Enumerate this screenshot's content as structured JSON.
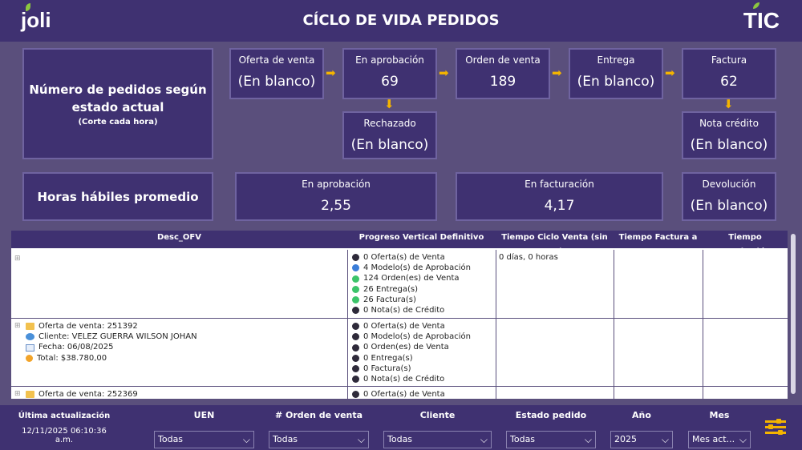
{
  "header": {
    "title": "CÍCLO DE VIDA PEDIDOS",
    "logo_left": "joli",
    "logo_right": "TIC"
  },
  "summary": {
    "title_line1": "Número de pedidos según",
    "title_line2": "estado actual",
    "subtitle": "(Corte cada hora)"
  },
  "states": [
    {
      "label": "Oferta de venta",
      "value": "(En blanco)"
    },
    {
      "label": "En aprobación",
      "value": "69"
    },
    {
      "label": "Orden de venta",
      "value": "189"
    },
    {
      "label": "Entrega",
      "value": "(En blanco)"
    },
    {
      "label": "Factura",
      "value": "62"
    },
    {
      "label": "Rechazado",
      "value": "(En blanco)"
    },
    {
      "label": "Nota crédito",
      "value": "(En blanco)"
    }
  ],
  "hours": {
    "title": "Horas hábiles promedio",
    "items": [
      {
        "label": "En aprobación",
        "value": "2,55"
      },
      {
        "label": "En facturación",
        "value": "4,17"
      },
      {
        "label": "Devolución",
        "value": "(En blanco)"
      }
    ]
  },
  "table": {
    "columns": [
      "Desc_OFV",
      "Progreso Vertical Definitivo",
      "Tiempo Ciclo Venta (sin NC)",
      "Tiempo Factura a NC",
      "Tiempo Aprobación"
    ],
    "rows": [
      {
        "expand": "⊞",
        "info": [],
        "progress": [
          {
            "text": "0 Oferta(s) de Venta",
            "color": "#2e2a3a"
          },
          {
            "text": "4 Modelo(s) de Aprobación",
            "color": "#3b7dd8"
          },
          {
            "text": "124 Orden(es) de Venta",
            "color": "#3cc46a"
          },
          {
            "text": "26 Entrega(s)",
            "color": "#3cc46a"
          },
          {
            "text": "26 Factura(s)",
            "color": "#3cc46a"
          },
          {
            "text": "0 Nota(s) de Crédito",
            "color": "#2e2a3a"
          }
        ],
        "ciclo": "0 días, 0 horas"
      },
      {
        "expand": "⊞",
        "info": [
          {
            "icon": "folder-icon",
            "text": "Oferta de venta: 251392"
          },
          {
            "icon": "client-icon",
            "text": "Cliente: VELEZ GUERRA WILSON JOHAN"
          },
          {
            "icon": "calendar-icon",
            "text": "Fecha: 06/08/2025"
          },
          {
            "icon": "coin-icon",
            "text": "Total: $38.780,00"
          }
        ],
        "progress": [
          {
            "text": "0 Oferta(s) de Venta",
            "color": "#2e2a3a"
          },
          {
            "text": "0 Modelo(s) de Aprobación",
            "color": "#2e2a3a"
          },
          {
            "text": "0 Orden(es) de Venta",
            "color": "#2e2a3a"
          },
          {
            "text": "0 Entrega(s)",
            "color": "#2e2a3a"
          },
          {
            "text": "0 Factura(s)",
            "color": "#2e2a3a"
          },
          {
            "text": "0 Nota(s) de Crédito",
            "color": "#2e2a3a"
          }
        ],
        "ciclo": ""
      },
      {
        "expand": "⊞",
        "info": [
          {
            "icon": "folder-icon",
            "text": "Oferta de venta: 252369"
          }
        ],
        "progress": [
          {
            "text": "0 Oferta(s) de Venta",
            "color": "#2e2a3a"
          }
        ],
        "ciclo": ""
      }
    ]
  },
  "footer": {
    "update_label": "Última actualización",
    "update_value": "12/11/2025 06:10:36 a.m.",
    "filters": [
      {
        "label": "UEN",
        "value": "Todas"
      },
      {
        "label": "# Orden de venta",
        "value": "Todas"
      },
      {
        "label": "Cliente",
        "value": "Todas"
      },
      {
        "label": "Estado pedido",
        "value": "Todas"
      },
      {
        "label": "Año",
        "value": "2025"
      },
      {
        "label": "Mes",
        "value": "Mes act..."
      }
    ]
  },
  "colors": {
    "background": "#5a4f7c",
    "card": "#3f3171",
    "accent": "#f4b400"
  }
}
